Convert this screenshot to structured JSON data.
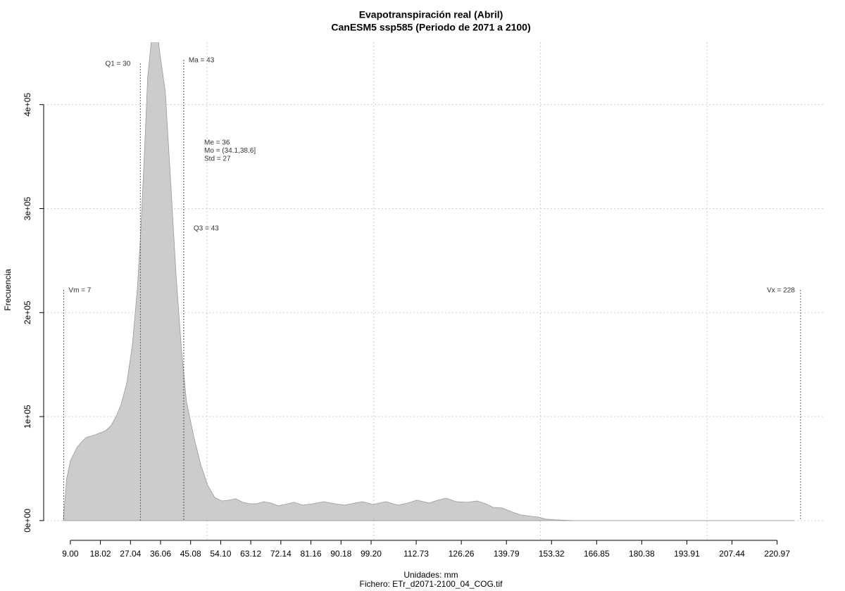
{
  "chart_data": {
    "type": "area",
    "title": "Evapotranspiración real (Abril)",
    "subtitle": "CanESM5 ssp585 (Periodo de 2071 a 2100)",
    "x_label": "Unidades: mm",
    "caption": "Fichero: ETr_d2071-2100_04_COG.tif",
    "y_label": "Frecuencia",
    "color": "#cccccc",
    "grid": true,
    "xlim": [
      1,
      235
    ],
    "ylim": [
      -19000,
      460000
    ],
    "xticks": [
      {
        "value": 9,
        "label": "9.00"
      },
      18.02,
      27.04,
      36.06,
      45.08,
      {
        "value": 54.1,
        "label": "54.10"
      },
      63.12,
      72.14,
      81.16,
      90.18,
      {
        "value": 99.2,
        "label": "99.20"
      },
      112.73,
      126.26,
      139.79,
      153.32,
      166.85,
      180.38,
      193.91,
      207.44,
      220.97
    ],
    "yticks": [
      {
        "value": 0,
        "label": "0e+00"
      },
      {
        "value": 100000,
        "label": "1e+05"
      },
      {
        "value": 200000,
        "label": "2e+05"
      },
      {
        "value": 300000,
        "label": "3e+05"
      },
      {
        "value": 400000,
        "label": "4e+05"
      }
    ],
    "xgrid": [
      50,
      100,
      150,
      200
    ],
    "x": [
      6.9,
      7.9,
      9,
      11.1,
      13.6,
      16.4,
      19.6,
      21.2,
      22.7,
      24.2,
      25.9,
      27.6,
      29.1,
      30.1,
      31.2,
      32.2,
      33.5,
      35,
      36,
      37.5,
      39,
      40.7,
      42.4,
      43.8,
      46,
      48.1,
      50.2,
      52.3,
      54.4,
      56.5,
      58.6,
      60.7,
      62.8,
      64.9,
      67,
      69.2,
      71.3,
      73.4,
      76.1,
      78.7,
      81.8,
      85,
      88.2,
      91.3,
      94.5,
      96.6,
      99.8,
      103.6,
      107.2,
      110.3,
      112.9,
      116.7,
      119.2,
      121.7,
      124.7,
      128.1,
      131,
      133.6,
      135.7,
      138.4,
      141.6,
      144.1,
      147.3,
      149.4,
      151.5,
      154.7,
      160,
      226
    ],
    "values": [
      0,
      40500,
      57400,
      70900,
      79700,
      82400,
      86500,
      91200,
      100000,
      111500,
      131800,
      168900,
      223000,
      277000,
      351400,
      425700,
      468000,
      472000,
      446000,
      412000,
      331000,
      236500,
      162000,
      115000,
      81000,
      54000,
      33800,
      22300,
      18900,
      19600,
      21000,
      17600,
      16200,
      16200,
      18200,
      16900,
      14200,
      15500,
      17600,
      14900,
      16200,
      18200,
      16200,
      14900,
      16900,
      18200,
      15500,
      18200,
      14900,
      16900,
      19600,
      16900,
      19600,
      21600,
      18200,
      17600,
      18900,
      16200,
      12800,
      12200,
      8100,
      5400,
      4100,
      3400,
      1400,
      700,
      0,
      0
    ],
    "markers": [
      {
        "label": "Vm = 7",
        "value": 7
      },
      {
        "label": "Q1 = 30",
        "value": 30
      },
      {
        "label": "Ma = 43",
        "value": 43
      },
      {
        "label": "Q3 = 43",
        "value": 43
      },
      {
        "label": "Vx = 228",
        "value": 228
      }
    ],
    "stats": [
      "Me = 36",
      "Mo = (34.1,38.6]",
      "Std = 27"
    ]
  }
}
